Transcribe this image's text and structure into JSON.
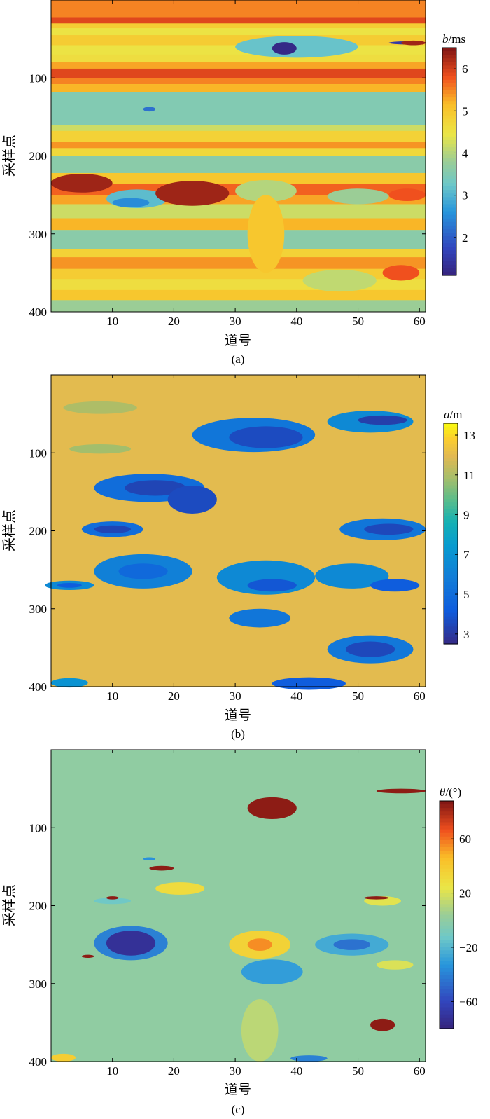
{
  "figure": {
    "panels": [
      {
        "label": "(a)",
        "cbar_label_var": "b",
        "cbar_label_unit": "/ms"
      },
      {
        "label": "(b)",
        "cbar_label_var": "a",
        "cbar_label_unit": "/m"
      },
      {
        "label": "(c)",
        "cbar_label_var": "θ",
        "cbar_label_unit": "/(°)"
      }
    ]
  },
  "chart_data": [
    {
      "type": "heatmap",
      "panel_label": "(a)",
      "xlabel": "道号",
      "ylabel": "采样点",
      "xlim": [
        0,
        61
      ],
      "ylim": [
        400,
        0
      ],
      "xticks": [
        10,
        20,
        30,
        40,
        50,
        60
      ],
      "yticks": [
        100,
        200,
        300,
        400
      ],
      "colorbar": {
        "label": "b/ms",
        "range": [
          1.1,
          6.5
        ],
        "ticks": [
          2,
          3,
          4,
          5,
          6
        ]
      },
      "colormap": "parula",
      "background_value": 4.6,
      "bands": [
        {
          "y": [
            0,
            22
          ],
          "v": 5.5
        },
        {
          "y": [
            22,
            30
          ],
          "v": 5.9
        },
        {
          "y": [
            30,
            36
          ],
          "v": 4.9
        },
        {
          "y": [
            36,
            45
          ],
          "v": 4.5
        },
        {
          "y": [
            45,
            58
          ],
          "v": 4.9
        },
        {
          "y": [
            58,
            70
          ],
          "v": 4.5
        },
        {
          "y": [
            70,
            80
          ],
          "v": 4.6
        },
        {
          "y": [
            80,
            88
          ],
          "v": 5.3
        },
        {
          "y": [
            88,
            100
          ],
          "v": 5.9
        },
        {
          "y": [
            100,
            108
          ],
          "v": 5.5
        },
        {
          "y": [
            108,
            118
          ],
          "v": 5.2
        },
        {
          "y": [
            118,
            160
          ],
          "v": 3.5
        },
        {
          "y": [
            160,
            168
          ],
          "v": 4.2
        },
        {
          "y": [
            168,
            182
          ],
          "v": 4.8
        },
        {
          "y": [
            182,
            190
          ],
          "v": 5.4
        },
        {
          "y": [
            190,
            200
          ],
          "v": 4.7
        },
        {
          "y": [
            200,
            222
          ],
          "v": 3.6
        },
        {
          "y": [
            222,
            236
          ],
          "v": 5.0
        },
        {
          "y": [
            236,
            250
          ],
          "v": 5.7
        },
        {
          "y": [
            250,
            262
          ],
          "v": 5.3
        },
        {
          "y": [
            262,
            280
          ],
          "v": 4.2
        },
        {
          "y": [
            280,
            295
          ],
          "v": 5.2
        },
        {
          "y": [
            295,
            320
          ],
          "v": 3.6
        },
        {
          "y": [
            320,
            330
          ],
          "v": 4.8
        },
        {
          "y": [
            330,
            345
          ],
          "v": 5.4
        },
        {
          "y": [
            345,
            358
          ],
          "v": 4.9
        },
        {
          "y": [
            358,
            372
          ],
          "v": 4.6
        },
        {
          "y": [
            372,
            385
          ],
          "v": 5.0
        },
        {
          "y": [
            385,
            400
          ],
          "v": 3.8
        }
      ],
      "features": [
        {
          "cx": 40,
          "cy": 60,
          "rx": 10,
          "ry": 14,
          "v": 3.2
        },
        {
          "cx": 38,
          "cy": 62,
          "rx": 2,
          "ry": 8,
          "v": 1.2
        },
        {
          "cx": 58,
          "cy": 55,
          "rx": 3,
          "ry": 2,
          "v": 1.5
        },
        {
          "cx": 59,
          "cy": 55,
          "rx": 2,
          "ry": 3,
          "v": 6.3
        },
        {
          "cx": 5,
          "cy": 235,
          "rx": 5,
          "ry": 12,
          "v": 6.3
        },
        {
          "cx": 14,
          "cy": 255,
          "rx": 5,
          "ry": 12,
          "v": 3.1
        },
        {
          "cx": 13,
          "cy": 260,
          "rx": 3,
          "ry": 6,
          "v": 2.5
        },
        {
          "cx": 23,
          "cy": 248,
          "rx": 6,
          "ry": 16,
          "v": 6.3
        },
        {
          "cx": 35,
          "cy": 245,
          "rx": 5,
          "ry": 14,
          "v": 4.0
        },
        {
          "cx": 50,
          "cy": 252,
          "rx": 5,
          "ry": 10,
          "v": 3.8
        },
        {
          "cx": 58,
          "cy": 250,
          "rx": 3,
          "ry": 8,
          "v": 5.8
        },
        {
          "cx": 35,
          "cy": 300,
          "rx": 3,
          "ry": 50,
          "v": 5.0
        },
        {
          "cx": 47,
          "cy": 360,
          "rx": 6,
          "ry": 14,
          "v": 4.1
        },
        {
          "cx": 57,
          "cy": 350,
          "rx": 3,
          "ry": 10,
          "v": 5.8
        },
        {
          "cx": 16,
          "cy": 140,
          "rx": 1,
          "ry": 3,
          "v": 2.2
        }
      ]
    },
    {
      "type": "heatmap",
      "panel_label": "(b)",
      "xlabel": "道号",
      "ylabel": "采样点",
      "xlim": [
        0,
        61
      ],
      "ylim": [
        400,
        0
      ],
      "xticks": [
        10,
        20,
        30,
        40,
        50,
        60
      ],
      "yticks": [
        100,
        200,
        300,
        400
      ],
      "colorbar": {
        "label": "a/m",
        "range": [
          2.5,
          13.6
        ],
        "ticks": [
          3,
          5,
          7,
          9,
          11,
          13
        ]
      },
      "colormap": "parula",
      "background_value": 12.0,
      "features": [
        {
          "cx": 8,
          "cy": 42,
          "rx": 6,
          "ry": 8,
          "v": 11.0
        },
        {
          "cx": 8,
          "cy": 95,
          "rx": 5,
          "ry": 6,
          "v": 10.8
        },
        {
          "cx": 33,
          "cy": 77,
          "rx": 10,
          "ry": 22,
          "v": 5.5
        },
        {
          "cx": 35,
          "cy": 80,
          "rx": 6,
          "ry": 14,
          "v": 3.6
        },
        {
          "cx": 52,
          "cy": 60,
          "rx": 7,
          "ry": 14,
          "v": 6.5
        },
        {
          "cx": 54,
          "cy": 58,
          "rx": 4,
          "ry": 6,
          "v": 3.2
        },
        {
          "cx": 16,
          "cy": 145,
          "rx": 9,
          "ry": 18,
          "v": 5.0
        },
        {
          "cx": 17,
          "cy": 145,
          "rx": 5,
          "ry": 10,
          "v": 3.4
        },
        {
          "cx": 23,
          "cy": 160,
          "rx": 4,
          "ry": 18,
          "v": 3.6
        },
        {
          "cx": 10,
          "cy": 198,
          "rx": 5,
          "ry": 10,
          "v": 5.0
        },
        {
          "cx": 10,
          "cy": 198,
          "rx": 3,
          "ry": 5,
          "v": 3.4
        },
        {
          "cx": 54,
          "cy": 198,
          "rx": 7,
          "ry": 14,
          "v": 5.5
        },
        {
          "cx": 55,
          "cy": 198,
          "rx": 4,
          "ry": 7,
          "v": 3.5
        },
        {
          "cx": 15,
          "cy": 252,
          "rx": 8,
          "ry": 22,
          "v": 6.0
        },
        {
          "cx": 15,
          "cy": 252,
          "rx": 4,
          "ry": 10,
          "v": 4.8
        },
        {
          "cx": 3,
          "cy": 270,
          "rx": 4,
          "ry": 6,
          "v": 6.5
        },
        {
          "cx": 3,
          "cy": 270,
          "rx": 2,
          "ry": 3,
          "v": 4.2
        },
        {
          "cx": 35,
          "cy": 260,
          "rx": 8,
          "ry": 22,
          "v": 6.5
        },
        {
          "cx": 36,
          "cy": 270,
          "rx": 4,
          "ry": 8,
          "v": 4.0
        },
        {
          "cx": 49,
          "cy": 258,
          "rx": 6,
          "ry": 16,
          "v": 6.5
        },
        {
          "cx": 56,
          "cy": 270,
          "rx": 4,
          "ry": 8,
          "v": 4.2
        },
        {
          "cx": 34,
          "cy": 312,
          "rx": 5,
          "ry": 12,
          "v": 5.5
        },
        {
          "cx": 52,
          "cy": 352,
          "rx": 7,
          "ry": 18,
          "v": 5.6
        },
        {
          "cx": 52,
          "cy": 352,
          "rx": 4,
          "ry": 10,
          "v": 3.5
        },
        {
          "cx": 42,
          "cy": 396,
          "rx": 6,
          "ry": 8,
          "v": 4.2
        },
        {
          "cx": 3,
          "cy": 395,
          "rx": 3,
          "ry": 6,
          "v": 7.0
        }
      ]
    },
    {
      "type": "heatmap",
      "panel_label": "(c)",
      "xlabel": "道号",
      "ylabel": "采样点",
      "xlim": [
        0,
        61
      ],
      "ylim": [
        400,
        0
      ],
      "xticks": [
        10,
        20,
        30,
        40,
        50,
        60
      ],
      "yticks": [
        100,
        200,
        300,
        400
      ],
      "colorbar": {
        "label": "θ/(°)",
        "range": [
          -80,
          88
        ],
        "ticks": [
          -60,
          -20,
          20,
          60
        ]
      },
      "colormap": "parula",
      "background_value": 0,
      "features": [
        {
          "cx": 36,
          "cy": 75,
          "rx": 4,
          "ry": 14,
          "v": 85
        },
        {
          "cx": 57,
          "cy": 53,
          "rx": 4,
          "ry": 3,
          "v": 85
        },
        {
          "cx": 21,
          "cy": 178,
          "rx": 4,
          "ry": 8,
          "v": 30
        },
        {
          "cx": 18,
          "cy": 152,
          "rx": 2,
          "ry": 3,
          "v": 85
        },
        {
          "cx": 10,
          "cy": 194,
          "rx": 3,
          "ry": 4,
          "v": -12
        },
        {
          "cx": 10,
          "cy": 190,
          "rx": 1,
          "ry": 2,
          "v": 85
        },
        {
          "cx": 54,
          "cy": 194,
          "rx": 3,
          "ry": 6,
          "v": 22
        },
        {
          "cx": 53,
          "cy": 190,
          "rx": 2,
          "ry": 2,
          "v": 85
        },
        {
          "cx": 13,
          "cy": 248,
          "rx": 6,
          "ry": 22,
          "v": -40
        },
        {
          "cx": 13,
          "cy": 248,
          "rx": 4,
          "ry": 16,
          "v": -72
        },
        {
          "cx": 34,
          "cy": 250,
          "rx": 5,
          "ry": 18,
          "v": 35
        },
        {
          "cx": 34,
          "cy": 250,
          "rx": 2,
          "ry": 8,
          "v": 55
        },
        {
          "cx": 36,
          "cy": 285,
          "rx": 5,
          "ry": 16,
          "v": -30
        },
        {
          "cx": 49,
          "cy": 250,
          "rx": 6,
          "ry": 14,
          "v": -25
        },
        {
          "cx": 49,
          "cy": 250,
          "rx": 3,
          "ry": 7,
          "v": -45
        },
        {
          "cx": 56,
          "cy": 276,
          "rx": 3,
          "ry": 6,
          "v": 20
        },
        {
          "cx": 34,
          "cy": 360,
          "rx": 3,
          "ry": 40,
          "v": 12
        },
        {
          "cx": 54,
          "cy": 353,
          "rx": 2,
          "ry": 8,
          "v": 85
        },
        {
          "cx": 42,
          "cy": 396,
          "rx": 3,
          "ry": 4,
          "v": -40
        },
        {
          "cx": 2,
          "cy": 395,
          "rx": 2,
          "ry": 5,
          "v": 38
        },
        {
          "cx": 6,
          "cy": 265,
          "rx": 1,
          "ry": 2,
          "v": 85
        },
        {
          "cx": 16,
          "cy": 140,
          "rx": 1,
          "ry": 2,
          "v": -35
        }
      ]
    }
  ]
}
